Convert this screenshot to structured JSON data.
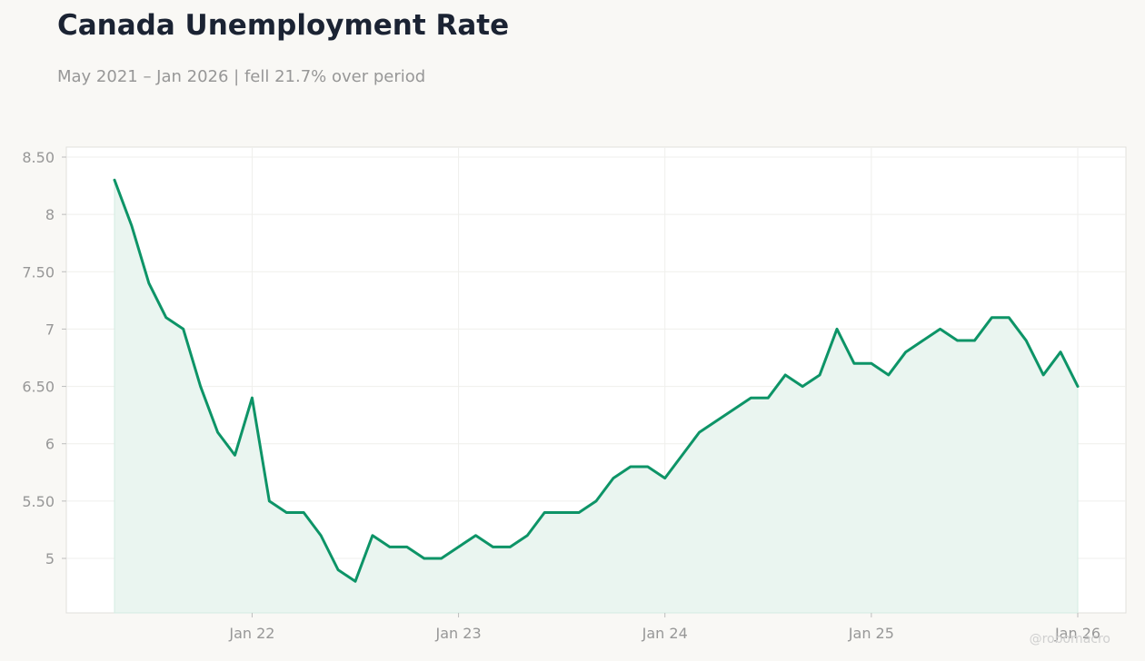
{
  "title": "Canada Unemployment Rate",
  "subtitle": "May 2021 – Jan 2026 | fell 21.7% over period",
  "watermark": "@robomacro",
  "colors": {
    "background": "#f9f8f5",
    "plot_background": "#ffffff",
    "line": "#0d9467",
    "fill": "#eaf5f0",
    "title": "#1b2333",
    "muted_text": "#979797"
  },
  "chart_data": {
    "type": "area",
    "xlabel": "",
    "ylabel": "",
    "x_start": "2021-05",
    "x_end": "2026-01",
    "x": [
      "2021-05",
      "2021-06",
      "2021-07",
      "2021-08",
      "2021-09",
      "2021-10",
      "2021-11",
      "2021-12",
      "2022-01",
      "2022-02",
      "2022-03",
      "2022-04",
      "2022-05",
      "2022-06",
      "2022-07",
      "2022-08",
      "2022-09",
      "2022-10",
      "2022-11",
      "2022-12",
      "2023-01",
      "2023-02",
      "2023-03",
      "2023-04",
      "2023-05",
      "2023-06",
      "2023-07",
      "2023-08",
      "2023-09",
      "2023-10",
      "2023-11",
      "2023-12",
      "2024-01",
      "2024-02",
      "2024-03",
      "2024-04",
      "2024-05",
      "2024-06",
      "2024-07",
      "2024-08",
      "2024-09",
      "2024-10",
      "2024-11",
      "2024-12",
      "2025-01",
      "2025-02",
      "2025-03",
      "2025-04",
      "2025-05",
      "2025-06",
      "2025-07",
      "2025-08",
      "2025-09",
      "2025-10",
      "2025-11",
      "2025-12",
      "2026-01"
    ],
    "values": [
      8.3,
      7.9,
      7.4,
      7.1,
      7.0,
      6.5,
      6.1,
      5.9,
      6.4,
      5.5,
      5.4,
      5.4,
      5.2,
      4.9,
      4.8,
      5.2,
      5.1,
      5.1,
      5.0,
      5.0,
      5.1,
      5.2,
      5.1,
      5.1,
      5.2,
      5.4,
      5.4,
      5.4,
      5.5,
      5.7,
      5.8,
      5.8,
      5.7,
      5.9,
      6.1,
      6.2,
      6.3,
      6.4,
      6.4,
      6.6,
      6.5,
      6.6,
      7.0,
      6.7,
      6.7,
      6.6,
      6.8,
      6.9,
      7.0,
      6.9,
      6.9,
      7.1,
      7.1,
      6.9,
      6.6,
      6.8,
      6.5
    ],
    "x_ticks": [
      {
        "date": "2022-01",
        "label": "Jan 22"
      },
      {
        "date": "2023-01",
        "label": "Jan 23"
      },
      {
        "date": "2024-01",
        "label": "Jan 24"
      },
      {
        "date": "2025-01",
        "label": "Jan 25"
      },
      {
        "date": "2026-01",
        "label": "Jan 26"
      }
    ],
    "y_ticks": [
      5,
      5.5,
      6,
      6.5,
      7,
      7.5,
      8,
      8.5
    ],
    "y_tick_labels": [
      "5",
      "5.50",
      "6",
      "6.50",
      "7",
      "7.50",
      "8",
      "8.50"
    ],
    "ylim": [
      4.5,
      8.6
    ],
    "grid": true,
    "legend": "none"
  }
}
